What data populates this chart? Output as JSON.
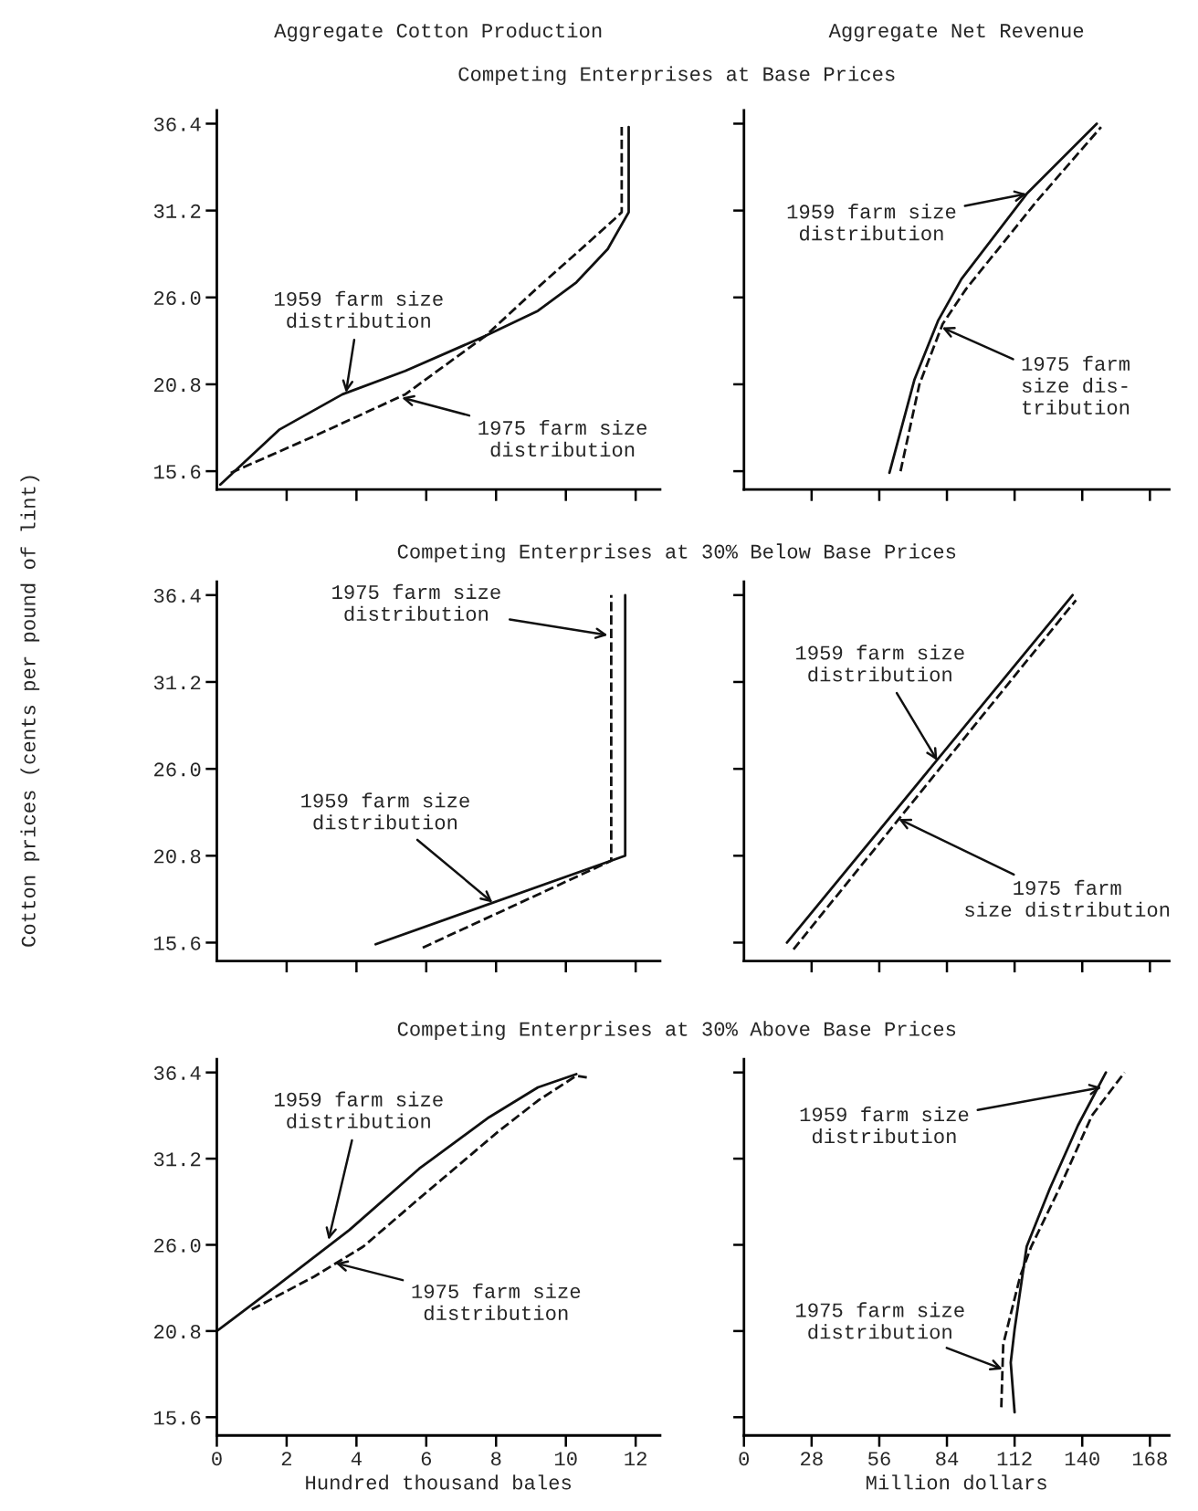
{
  "chart_data": [
    {
      "type": "line",
      "title": "Aggregate Cotton Production",
      "subtitle": "Competing Enterprises at Base Prices",
      "xlim": [
        0,
        12.7
      ],
      "ylim": [
        14.5,
        37.2
      ],
      "xticks": [
        2,
        4,
        6,
        8,
        10,
        12
      ],
      "yticks": [
        {
          "value": 15.6,
          "label": "15.6"
        },
        {
          "value": 20.8,
          "label": "20.8"
        },
        {
          "value": 26.0,
          "label": "26.0"
        },
        {
          "value": 31.2,
          "label": "31.2"
        },
        {
          "value": 36.4,
          "label": "36.4"
        }
      ],
      "tick_labels": "y",
      "series": [
        {
          "color": "#111111",
          "line_style": "solid",
          "x": [
            0.1,
            1.8,
            3.6,
            5.4,
            7.7,
            9.2,
            10.3,
            11.2,
            11.8,
            11.8
          ],
          "values": [
            14.8,
            18.1,
            20.2,
            21.6,
            23.7,
            25.2,
            26.9,
            28.9,
            31.1,
            36.2
          ]
        },
        {
          "color": "#111111",
          "line_style": "dashed",
          "x": [
            0.4,
            2.9,
            5.4,
            7.7,
            9.2,
            10.6,
            11.4,
            11.6,
            11.6
          ],
          "values": [
            15.5,
            17.8,
            20.2,
            23.7,
            26.6,
            29.2,
            30.7,
            31.1,
            36.2
          ]
        }
      ],
      "annotations": [
        {
          "text": "1959 farm size\ndistribution",
          "x": 3.7,
          "y": 20.3
        },
        {
          "text": "1975 farm size\ndistribution",
          "x": 5.3,
          "y": 20.0
        }
      ]
    },
    {
      "type": "line",
      "title": "Aggregate Net Revenue",
      "xlim": [
        0,
        176
      ],
      "ylim": [
        14.5,
        37.2
      ],
      "xticks": [
        28,
        56,
        84,
        112,
        140,
        168
      ],
      "yticks": [
        15.6,
        20.8,
        26.0,
        31.2,
        36.4
      ],
      "tick_labels": false,
      "series": [
        {
          "color": "#111111",
          "line_style": "solid",
          "x": [
            60.2,
            70.6,
            80.3,
            90.0,
            117.0,
            146.0
          ],
          "values": [
            15.5,
            21.1,
            24.6,
            27.1,
            32.2,
            36.4
          ]
        },
        {
          "color": "#111111",
          "line_style": "dashed",
          "x": [
            64.8,
            72.6,
            82.2,
            91.9,
            120.8,
            147.8
          ],
          "values": [
            15.6,
            20.8,
            24.4,
            26.5,
            31.7,
            36.2
          ]
        }
      ],
      "annotations": [
        {
          "text": "1959 farm size\ndistribution",
          "x": 117,
          "y": 32.2
        },
        {
          "text": "1975 farm\nsize dis-\ntribution",
          "x": 82,
          "y": 24.2
        }
      ]
    },
    {
      "type": "line",
      "subtitle": "Competing Enterprises at 30% Below Base Prices",
      "ylabel": "Cotton prices (cents per pound of lint)",
      "xlim": [
        0,
        12.7
      ],
      "ylim": [
        14.5,
        37.2
      ],
      "xticks": [
        2,
        4,
        6,
        8,
        10,
        12
      ],
      "yticks": [
        {
          "value": 15.6,
          "label": "15.6"
        },
        {
          "value": 20.8,
          "label": "20.8"
        },
        {
          "value": 26.0,
          "label": "26.0"
        },
        {
          "value": 31.2,
          "label": "31.2"
        },
        {
          "value": 36.4,
          "label": "36.4"
        }
      ],
      "tick_labels": "y",
      "series": [
        {
          "color": "#111111",
          "line_style": "solid",
          "x": [
            4.55,
            11.7,
            11.7
          ],
          "values": [
            15.5,
            20.8,
            36.4
          ]
        },
        {
          "color": "#111111",
          "line_style": "dashed",
          "x": [
            5.9,
            11.3,
            11.3
          ],
          "values": [
            15.3,
            20.5,
            36.4
          ]
        }
      ],
      "annotations": [
        {
          "text": "1975 farm size\ndistribution",
          "x": 11.2,
          "y": 34.0
        },
        {
          "text": "1959 farm size\ndistribution",
          "x": 7.9,
          "y": 18.0
        }
      ]
    },
    {
      "type": "line",
      "xlim": [
        0,
        176
      ],
      "ylim": [
        14.5,
        37.2
      ],
      "xticks": [
        28,
        56,
        84,
        112,
        140,
        168
      ],
      "yticks": [
        15.6,
        20.8,
        26.0,
        31.2,
        36.4
      ],
      "tick_labels": false,
      "series": [
        {
          "color": "#111111",
          "line_style": "solid",
          "x": [
            17.8,
            136.0
          ],
          "values": [
            15.6,
            36.4
          ]
        },
        {
          "color": "#111111",
          "line_style": "dashed",
          "x": [
            20.5,
            137.4
          ],
          "values": [
            15.2,
            36.1
          ]
        }
      ],
      "annotations": [
        {
          "text": "1959 farm size\ndistribution",
          "x": 80,
          "y": 26.5
        },
        {
          "text": "1975 farm\nsize distribution",
          "x": 64,
          "y": 23.0
        }
      ]
    },
    {
      "type": "line",
      "subtitle": "Competing Enterprises at 30% Above Base Prices",
      "xlabel": "Hundred thousand bales",
      "xlim": [
        0,
        12.7
      ],
      "ylim": [
        14.5,
        37.2
      ],
      "xticks": [
        0,
        2,
        4,
        6,
        8,
        10,
        12
      ],
      "yticks": [
        {
          "value": 15.6,
          "label": "15.6"
        },
        {
          "value": 20.8,
          "label": "20.8"
        },
        {
          "value": 26.0,
          "label": "26.0"
        },
        {
          "value": 31.2,
          "label": "31.2"
        },
        {
          "value": 36.4,
          "label": "36.4"
        }
      ],
      "series": [
        {
          "color": "#111111",
          "line_style": "solid",
          "x": [
            0,
            1.7,
            3.8,
            5.8,
            7.8,
            9.2,
            10.3
          ],
          "values": [
            20.8,
            23.5,
            26.9,
            30.6,
            33.7,
            35.5,
            36.3
          ]
        },
        {
          "color": "#111111",
          "line_style": "dashed",
          "x": [
            1.0,
            2.8,
            4.2,
            5.8,
            8.1,
            9.2,
            10.3,
            10.6
          ],
          "values": [
            22.1,
            24.1,
            25.9,
            28.8,
            32.9,
            34.7,
            36.2,
            36.1
          ]
        }
      ],
      "annotations": [
        {
          "text": "1959 farm size\ndistribution",
          "x": 3.2,
          "y": 26.3
        },
        {
          "text": "1975 farm size\ndistribution",
          "x": 3.4,
          "y": 24.9
        }
      ]
    },
    {
      "type": "line",
      "xlabel": "Million dollars",
      "xlim": [
        0,
        176
      ],
      "ylim": [
        14.5,
        37.2
      ],
      "xticks": [
        0,
        28,
        56,
        84,
        112,
        140,
        168
      ],
      "yticks": [
        15.6,
        20.8,
        26.0,
        31.2,
        36.4
      ],
      "tick_labels": "x",
      "series": [
        {
          "color": "#111111",
          "line_style": "solid",
          "x": [
            112.0,
            110.4,
            112.0,
            117.0,
            126.6,
            138.2,
            149.8
          ],
          "values": [
            15.9,
            18.9,
            20.9,
            25.9,
            29.4,
            33.2,
            36.4
          ]
        },
        {
          "color": "#111111",
          "line_style": "dashed",
          "x": [
            106.5,
            107.3,
            114.3,
            118.9,
            130.5,
            144.0,
            157.5
          ],
          "values": [
            16.2,
            20.0,
            24.1,
            25.9,
            29.4,
            33.8,
            36.4
          ]
        }
      ],
      "annotations": [
        {
          "text": "1959 farm size\ndistribution",
          "x": 148,
          "y": 35.5
        },
        {
          "text": "1975 farm size\ndistribution",
          "x": 107,
          "y": 18.5
        }
      ]
    }
  ]
}
